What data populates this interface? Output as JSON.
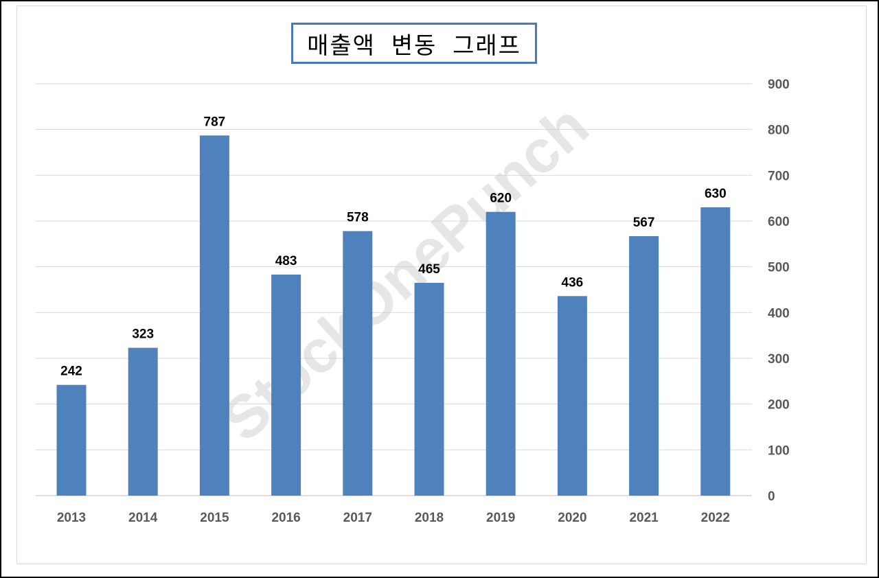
{
  "chart_data": {
    "type": "bar",
    "title": "매출액 변동 그래프",
    "categories": [
      "2013",
      "2014",
      "2015",
      "2016",
      "2017",
      "2018",
      "2019",
      "2020",
      "2021",
      "2022"
    ],
    "values": [
      242,
      323,
      787,
      483,
      578,
      465,
      620,
      436,
      567,
      630
    ],
    "ylim": [
      0,
      900
    ],
    "yticks": [
      0,
      100,
      200,
      300,
      400,
      500,
      600,
      700,
      800,
      900
    ],
    "yaxis_position": "right",
    "grid": true,
    "data_labels": true,
    "legend": "none",
    "bar_color": "#4f81bd",
    "watermark": "StockOnePunch"
  }
}
